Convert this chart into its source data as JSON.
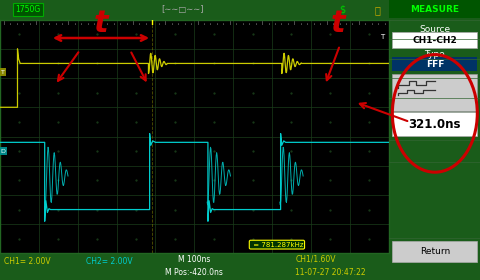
{
  "screen_bg": "#000000",
  "panel_bg": "#1a5c1a",
  "grid_color": "#1a3d1a",
  "ch1_color": "#cccc00",
  "ch2_color": "#00cccc",
  "ch1_label": "CH1= 2.00V",
  "ch2_label": "CH2= 2.00V",
  "time_label": "M 100ns",
  "mpos_label": "M Pos:-420.0ns",
  "freq_label": "= 781.287kHz",
  "ch1_trig_label": "CH1/1.60V",
  "date_label": "11-07-27 20:47:22",
  "measure_title": "MEASURE",
  "source_label": "Source",
  "source_value": "CH1-CH2",
  "type_label": "Type",
  "type_value": "FFF",
  "result_value": "321.0ns",
  "return_label": "Return",
  "arrow_color": "#cc0000",
  "circle_color": "#cc0000",
  "t_label_color": "#cc0000",
  "top_status_left": "1750G",
  "freq_dot_color": "#ffff00",
  "status_bar_color": "#1a5c1a",
  "bottom_bar_color": "#1a5c1a"
}
